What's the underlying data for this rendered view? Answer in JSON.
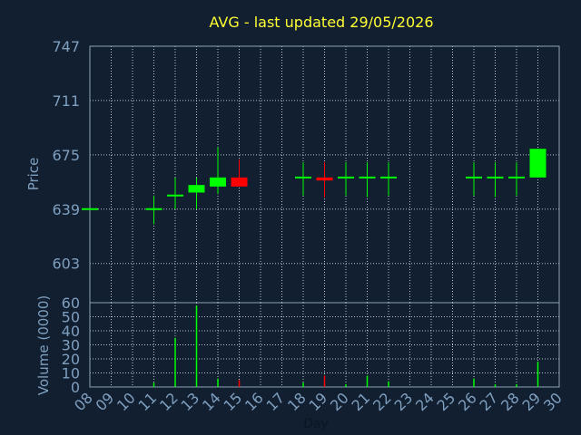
{
  "chart_data": {
    "type": "candlestick",
    "title": "AVG - last updated 29/05/2026",
    "xlabel": "Day",
    "ylabel": "Price",
    "volume_label": "Volume (0000)",
    "x_ticks": [
      "08",
      "09",
      "10",
      "11",
      "12",
      "13",
      "14",
      "15",
      "16",
      "17",
      "18",
      "19",
      "20",
      "21",
      "22",
      "23",
      "24",
      "25",
      "26",
      "27",
      "28",
      "29",
      "30"
    ],
    "price_ticks": [
      603,
      639,
      675,
      711,
      747
    ],
    "price_range": [
      577,
      747
    ],
    "volume_ticks": [
      0,
      10,
      20,
      30,
      40,
      50,
      60
    ],
    "volume_range": [
      0,
      60
    ],
    "grid": true,
    "up_color": "#00ff00",
    "down_color": "#ff0000",
    "candles": [
      {
        "day": 8,
        "open": 639,
        "high": 639,
        "low": 639,
        "close": 639
      },
      {
        "day": 11,
        "open": 639,
        "high": 648,
        "low": 629,
        "close": 639
      },
      {
        "day": 12,
        "open": 648,
        "high": 660,
        "low": 639,
        "close": 648
      },
      {
        "day": 13,
        "open": 650,
        "high": 660,
        "low": 639,
        "close": 655
      },
      {
        "day": 14,
        "open": 654,
        "high": 680,
        "low": 649,
        "close": 660
      },
      {
        "day": 15,
        "open": 660,
        "high": 672,
        "low": 654,
        "close": 654
      },
      {
        "day": 18,
        "open": 660,
        "high": 670,
        "low": 648,
        "close": 660
      },
      {
        "day": 19,
        "open": 660,
        "high": 670,
        "low": 647,
        "close": 658
      },
      {
        "day": 20,
        "open": 660,
        "high": 670,
        "low": 648,
        "close": 660
      },
      {
        "day": 21,
        "open": 660,
        "high": 670,
        "low": 647,
        "close": 660
      },
      {
        "day": 22,
        "open": 660,
        "high": 670,
        "low": 648,
        "close": 660
      },
      {
        "day": 26,
        "open": 660,
        "high": 670,
        "low": 648,
        "close": 660
      },
      {
        "day": 27,
        "open": 660,
        "high": 670,
        "low": 647,
        "close": 660
      },
      {
        "day": 28,
        "open": 660,
        "high": 670,
        "low": 648,
        "close": 660
      },
      {
        "day": 29,
        "open": 660,
        "high": 679,
        "low": 660,
        "close": 679
      }
    ],
    "volume": [
      {
        "day": 8,
        "value": 0
      },
      {
        "day": 11,
        "value": 3
      },
      {
        "day": 12,
        "value": 35
      },
      {
        "day": 13,
        "value": 58
      },
      {
        "day": 14,
        "value": 6
      },
      {
        "day": 15,
        "value": 5
      },
      {
        "day": 18,
        "value": 3
      },
      {
        "day": 19,
        "value": 8
      },
      {
        "day": 20,
        "value": 2
      },
      {
        "day": 21,
        "value": 8
      },
      {
        "day": 22,
        "value": 4
      },
      {
        "day": 26,
        "value": 6
      },
      {
        "day": 27,
        "value": 2
      },
      {
        "day": 28,
        "value": 2
      },
      {
        "day": 29,
        "value": 18
      }
    ]
  }
}
